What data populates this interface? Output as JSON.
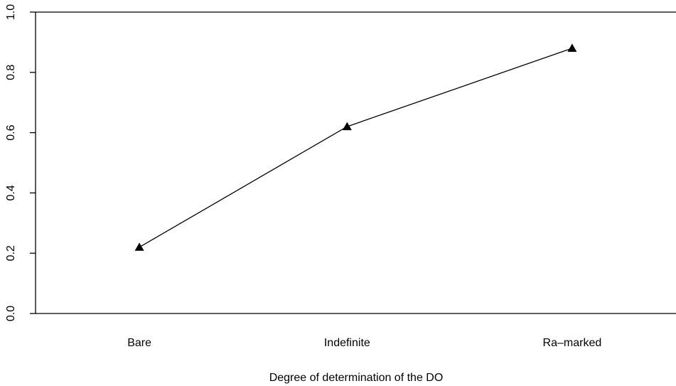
{
  "chart_data": {
    "type": "line",
    "title": "",
    "xlabel": "Degree of determination of the DO",
    "ylabel": "",
    "categories": [
      "Bare",
      "Indefinite",
      "Ra–marked"
    ],
    "x": [
      1,
      2.2,
      3.5
    ],
    "xlim": [
      0.4,
      4.1
    ],
    "series": [
      {
        "values": [
          0.22,
          0.62,
          0.88
        ],
        "marker": "triangle",
        "color": "#000000"
      }
    ],
    "ylim": [
      0.0,
      1.0
    ],
    "yticks": [
      0.0,
      0.2,
      0.4,
      0.6,
      0.8,
      1.0
    ],
    "ytick_labels": [
      "0.0",
      "0.2",
      "0.4",
      "0.6",
      "0.8",
      "1.0"
    ],
    "grid": false,
    "legend": "none"
  }
}
